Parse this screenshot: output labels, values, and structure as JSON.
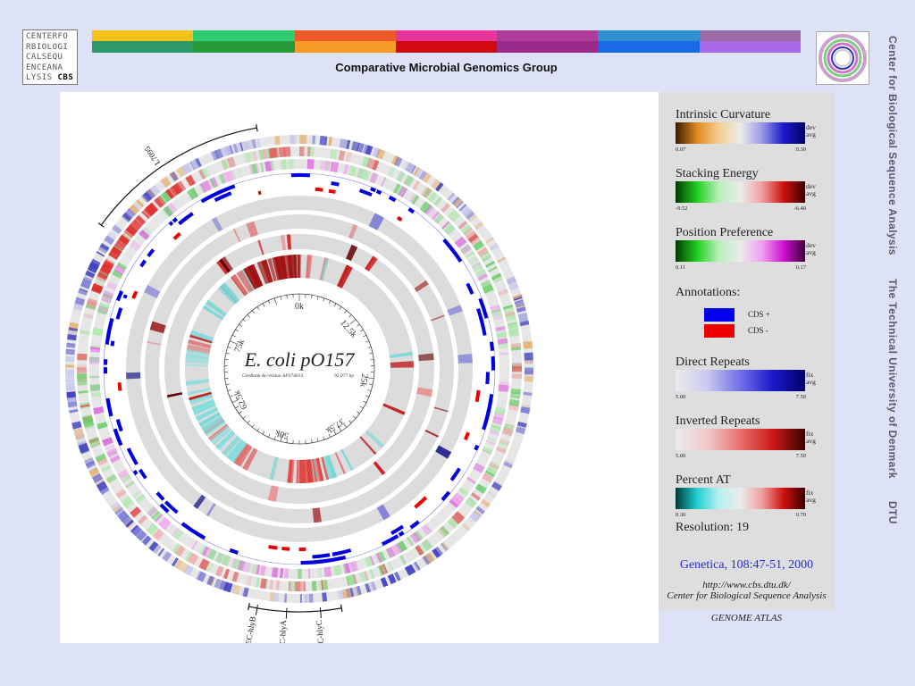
{
  "header": {
    "logo_lines": [
      "CENTERFO",
      "RBIOLOGI",
      "CALSEQU",
      "ENCEANA",
      "LYSIS"
    ],
    "logo_suffix": "CBS",
    "title": "Comparative Microbial Genomics Group",
    "color_bar_top": [
      "#f6c21a",
      "#2ecc71",
      "#f05a28",
      "#e8359a",
      "#b03a9c",
      "#2f8fcf",
      "#9b6aa6"
    ],
    "color_bar_bottom": [
      "#2e9a6a",
      "#279a3a",
      "#f89a28",
      "#d00a10",
      "#9a2a8a",
      "#1a6ae8",
      "#a86ae8"
    ]
  },
  "side_text": [
    "Center for Biological Sequence Analysis",
    "The Technical University of Denmark",
    "DTU"
  ],
  "atlas": {
    "organism_name": "E. coli  pO157",
    "accession": "GenBank Accession AF074613",
    "length": "92,077 bp",
    "scale_labels": [
      "0k",
      "12.5k",
      "25k",
      "37.5k",
      "50k",
      "62.5k",
      "75k"
    ],
    "gene_labels": [
      "L7095",
      "EHEC-hlyC",
      "EHEC-hlyA",
      "EHEC-hlyB"
    ]
  },
  "legend": {
    "sections": [
      {
        "title": "Intrinsic Curvature",
        "min": "0.07",
        "max": "0.30",
        "tags": [
          "dev",
          "avg"
        ],
        "colors": [
          "#3a1a00",
          "#e08a20",
          "#f5cc90",
          "#ececec",
          "#9a9ae8",
          "#1a1acc",
          "#000066"
        ]
      },
      {
        "title": "Stacking Energy",
        "min": "-9.52",
        "max": "-6.40",
        "tags": [
          "dev",
          "avg"
        ],
        "colors": [
          "#003a00",
          "#20d020",
          "#b8f0b8",
          "#ececec",
          "#f0a0a0",
          "#d01010",
          "#3a0000"
        ]
      },
      {
        "title": "Position Preference",
        "min": "0.11",
        "max": "0.17",
        "tags": [
          "dev",
          "avg"
        ],
        "colors": [
          "#003a00",
          "#20d020",
          "#b8f0b8",
          "#ececec",
          "#f0a0f0",
          "#d010d0",
          "#3a003a"
        ]
      },
      {
        "title": "Direct Repeats",
        "min": "5.00",
        "max": "7.50",
        "tags": [
          "fix",
          "avg"
        ],
        "colors": [
          "#ececec",
          "#c8c8f0",
          "#7070e8",
          "#1a1acc",
          "#000066"
        ]
      },
      {
        "title": "Inverted Repeats",
        "min": "5.00",
        "max": "7.50",
        "tags": [
          "fix",
          "avg"
        ],
        "colors": [
          "#ececec",
          "#f0c8c8",
          "#e87070",
          "#cc1a1a",
          "#3a0000"
        ]
      },
      {
        "title": "Percent AT",
        "min": "0.30",
        "max": "0.70",
        "tags": [
          "fix",
          "avg"
        ],
        "colors": [
          "#003a3a",
          "#20d0d0",
          "#b8f0f0",
          "#ececec",
          "#f0a0a0",
          "#d01010",
          "#3a0000"
        ]
      }
    ],
    "annotations_title": "Annotations:",
    "cds_plus": "CDS +",
    "cds_minus": "CDS -",
    "cds_plus_color": "#0000ee",
    "cds_minus_color": "#ee0000",
    "resolution": "Resolution: 19",
    "citation": "Genetica, 108:47-51, 2000",
    "credit_url": "http://www.cbs.dtu.dk/",
    "credit_name": "Center for Biological Sequence Analysis"
  },
  "footer_label": "GENOME ATLAS"
}
